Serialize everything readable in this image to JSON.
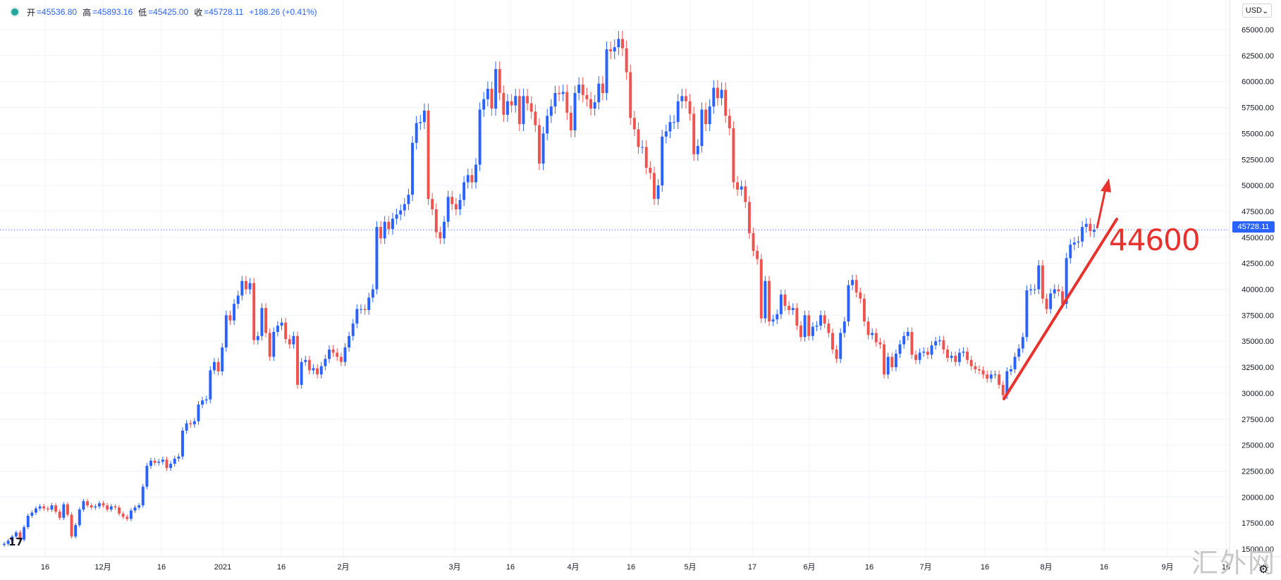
{
  "legend": {
    "open_label": "开",
    "open": "=45536.80",
    "high_label": "高",
    "high": "=45893.16",
    "low_label": "低",
    "low": "=45425.00",
    "close_label": "收",
    "close": "=45728.11",
    "change": "+188.26 (+0.41%)"
  },
  "currency": "USD",
  "current_price": "45728.11",
  "annotation": {
    "text": "44600"
  },
  "watermark": "汇外网",
  "tv_logo": "17",
  "icons": {
    "settings": "gear-icon",
    "status": "status-dot-icon"
  },
  "colors": {
    "up": "#2962ff",
    "down": "#ef5350",
    "annotation": "#e8322e",
    "price_line": "#2962ff"
  },
  "chart_data": {
    "type": "candlestick",
    "title": "",
    "ylim": [
      13800,
      66000
    ],
    "y_ticks": [
      "15000.00",
      "17500.00",
      "20000.00",
      "22500.00",
      "25000.00",
      "27500.00",
      "30000.00",
      "32500.00",
      "35000.00",
      "37500.00",
      "40000.00",
      "42500.00",
      "45000.00",
      "47500.00",
      "50000.00",
      "52500.00",
      "55000.00",
      "57500.00",
      "60000.00",
      "62500.00",
      "65000.00"
    ],
    "x_ticks": [
      "16",
      "12月",
      "16",
      "2021",
      "16",
      "2月",
      "3月",
      "16",
      "4月",
      "16",
      "5月",
      "17",
      "6月",
      "16",
      "7月",
      "16",
      "8月",
      "16",
      "9月",
      "16"
    ],
    "current_price": 45728.11,
    "grid": true,
    "close": [
      15500,
      15800,
      16200,
      16600,
      15900,
      17100,
      18200,
      18500,
      18900,
      19100,
      18900,
      18800,
      19200,
      18600,
      18000,
      19300,
      18300,
      16200,
      17300,
      18800,
      19600,
      19200,
      19000,
      19100,
      19400,
      19200,
      18800,
      19100,
      19000,
      18400,
      18100,
      17900,
      18700,
      19000,
      19200,
      21000,
      23000,
      23500,
      23300,
      23400,
      23600,
      22800,
      23200,
      23700,
      23900,
      26400,
      27100,
      27000,
      27300,
      28900,
      29300,
      29400,
      32200,
      33000,
      32100,
      34400,
      37500,
      37000,
      38600,
      39400,
      40800,
      40000,
      40600,
      35100,
      35500,
      38200,
      35800,
      33500,
      35900,
      36500,
      36800,
      35200,
      34700,
      35500,
      30800,
      33000,
      33200,
      32200,
      32400,
      31800,
      32600,
      33300,
      34200,
      33900,
      33500,
      33000,
      34400,
      35500,
      36700,
      38100,
      38100,
      38000,
      39200,
      40000,
      46000,
      44900,
      46500,
      45800,
      46800,
      47200,
      47600,
      48200,
      49100,
      54100,
      56000,
      56100,
      57200,
      48700,
      47700,
      45500,
      44900,
      46500,
      48900,
      48200,
      47700,
      48600,
      50300,
      51000,
      50300,
      52000,
      57300,
      58300,
      59300,
      57400,
      61200,
      58900,
      56800,
      58100,
      57700,
      58600,
      55900,
      58600,
      57900,
      57100,
      55800,
      52100,
      55000,
      56700,
      57600,
      58900,
      58800,
      59000,
      57000,
      55300,
      58900,
      59700,
      58700,
      58300,
      57400,
      58000,
      59800,
      58900,
      63100,
      62900,
      63300,
      64100,
      63200,
      60900,
      56500,
      55400,
      53700,
      53700,
      51700,
      51200,
      48700,
      50000,
      54700,
      55200,
      56100,
      56100,
      58100,
      58600,
      58100,
      56900,
      53000,
      53800,
      57300,
      55900,
      57600,
      59400,
      58400,
      59200,
      56700,
      55500,
      50300,
      49600,
      49900,
      48400,
      45400,
      43700,
      42900,
      37200,
      40800,
      36900,
      37100,
      37600,
      39500,
      38400,
      38000,
      38200,
      36500,
      35400,
      37500,
      35500,
      36400,
      36500,
      37500,
      36700,
      35800,
      34200,
      33300,
      35800,
      36900,
      40400,
      40900,
      39700,
      39100,
      36900,
      35600,
      35800,
      34900,
      34700,
      31800,
      33500,
      32500,
      33800,
      34700,
      35500,
      35900,
      33700,
      33200,
      33900,
      34000,
      33700,
      34600,
      35000,
      35100,
      34200,
      33400,
      33600,
      33000,
      33900,
      34000,
      33200,
      32600,
      32300,
      32200,
      31800,
      31400,
      31800,
      31800,
      30800,
      29800,
      32100,
      32300,
      33500,
      34300,
      35400,
      39900,
      40000,
      40000,
      42300,
      39100,
      38100,
      39600,
      40000,
      39800,
      38600,
      43000,
      44300,
      44500,
      44600,
      46000,
      46300,
      45600,
      45728
    ],
    "open": [
      15400,
      15500,
      15800,
      16200,
      16600,
      15900,
      17100,
      18200,
      18500,
      18900,
      19100,
      18900,
      18800,
      19200,
      18600,
      18000,
      19300,
      18300,
      16200,
      17300,
      18800,
      19600,
      19200,
      19000,
      19100,
      19400,
      19200,
      18800,
      19100,
      19000,
      18400,
      18100,
      17900,
      18700,
      19000,
      19200,
      21000,
      23000,
      23500,
      23300,
      23400,
      23600,
      22800,
      23200,
      23700,
      23900,
      26400,
      27100,
      27000,
      27300,
      28900,
      29300,
      29400,
      32200,
      33000,
      32100,
      34400,
      37500,
      37000,
      38600,
      39400,
      40800,
      40000,
      40600,
      35100,
      35500,
      38200,
      35800,
      33500,
      35900,
      36500,
      36800,
      35200,
      34700,
      35500,
      30800,
      33000,
      33200,
      32200,
      32400,
      31800,
      32600,
      33300,
      34200,
      33900,
      33500,
      33000,
      34400,
      35500,
      36700,
      38100,
      38100,
      38000,
      39200,
      40000,
      46000,
      44900,
      46500,
      45800,
      46800,
      47200,
      47600,
      48200,
      49100,
      54100,
      56000,
      56100,
      57200,
      48700,
      47700,
      45500,
      44900,
      46500,
      48900,
      48200,
      47700,
      48600,
      50300,
      51000,
      50300,
      52000,
      57300,
      58300,
      59300,
      57400,
      61200,
      58900,
      56800,
      58100,
      57700,
      58600,
      55900,
      58600,
      57900,
      57100,
      55800,
      52100,
      55000,
      56700,
      57600,
      58900,
      58800,
      59000,
      57000,
      55300,
      58900,
      59700,
      58700,
      58300,
      57400,
      58000,
      59800,
      58900,
      63100,
      62900,
      63300,
      64100,
      63200,
      60900,
      56500,
      55400,
      53700,
      53700,
      51700,
      51200,
      48700,
      50000,
      54700,
      55200,
      56100,
      56100,
      58100,
      58600,
      58100,
      56900,
      53000,
      53800,
      57300,
      55900,
      57600,
      59400,
      58400,
      59200,
      56700,
      55500,
      50300,
      49600,
      49900,
      48400,
      45400,
      43700,
      42900,
      37200,
      40800,
      36900,
      37100,
      37600,
      39500,
      38400,
      38000,
      38200,
      36500,
      35400,
      37500,
      35500,
      36400,
      36500,
      37500,
      36700,
      35800,
      34200,
      33300,
      35800,
      36900,
      40400,
      40900,
      39700,
      39100,
      36900,
      35600,
      35800,
      34900,
      34700,
      31800,
      33500,
      32500,
      33800,
      34700,
      35500,
      35900,
      33700,
      33200,
      33900,
      34000,
      33700,
      34600,
      35000,
      35100,
      34200,
      33400,
      33600,
      33000,
      33900,
      34000,
      33200,
      32600,
      32300,
      32200,
      31800,
      31400,
      31800,
      31800,
      30800,
      29800,
      32100,
      32300,
      33500,
      34300,
      35400,
      39900,
      40000,
      40000,
      42300,
      39100,
      38100,
      39600,
      40000,
      39800,
      38600,
      43000,
      44300,
      44500,
      44600,
      46000,
      46300,
      45537
    ]
  }
}
